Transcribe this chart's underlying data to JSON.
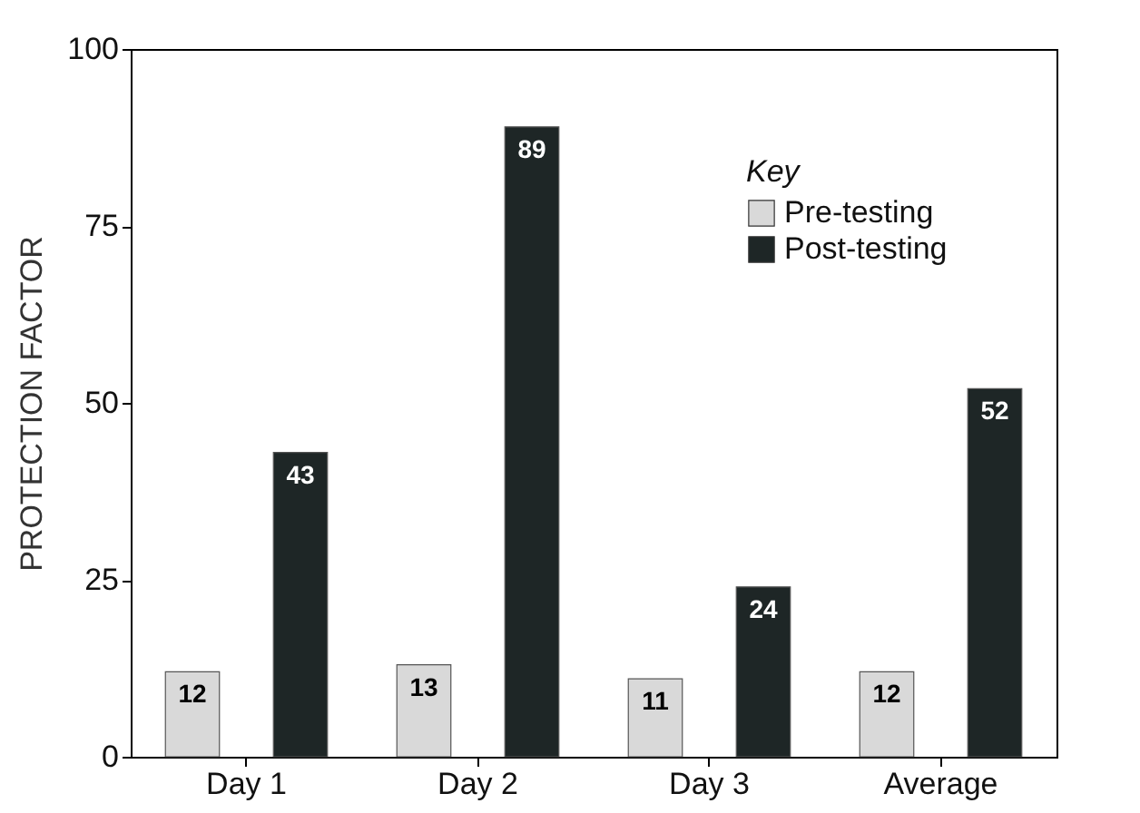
{
  "chart_data": {
    "type": "bar",
    "ylabel": "PROTECTION FACTOR",
    "legend_title": "Key",
    "categories": [
      "Day 1",
      "Day 2",
      "Day 3",
      "Average"
    ],
    "series": [
      {
        "name": "Pre-testing",
        "color": "#d9d9d9",
        "values": [
          12,
          13,
          11,
          12
        ]
      },
      {
        "name": "Post-testing",
        "color": "#1e2626",
        "values": [
          43,
          89,
          24,
          52
        ]
      }
    ],
    "ylim": [
      0,
      100
    ],
    "yticks": [
      0,
      25,
      50,
      75,
      100
    ],
    "grid": false,
    "legend": "top right",
    "data_labels": true
  }
}
